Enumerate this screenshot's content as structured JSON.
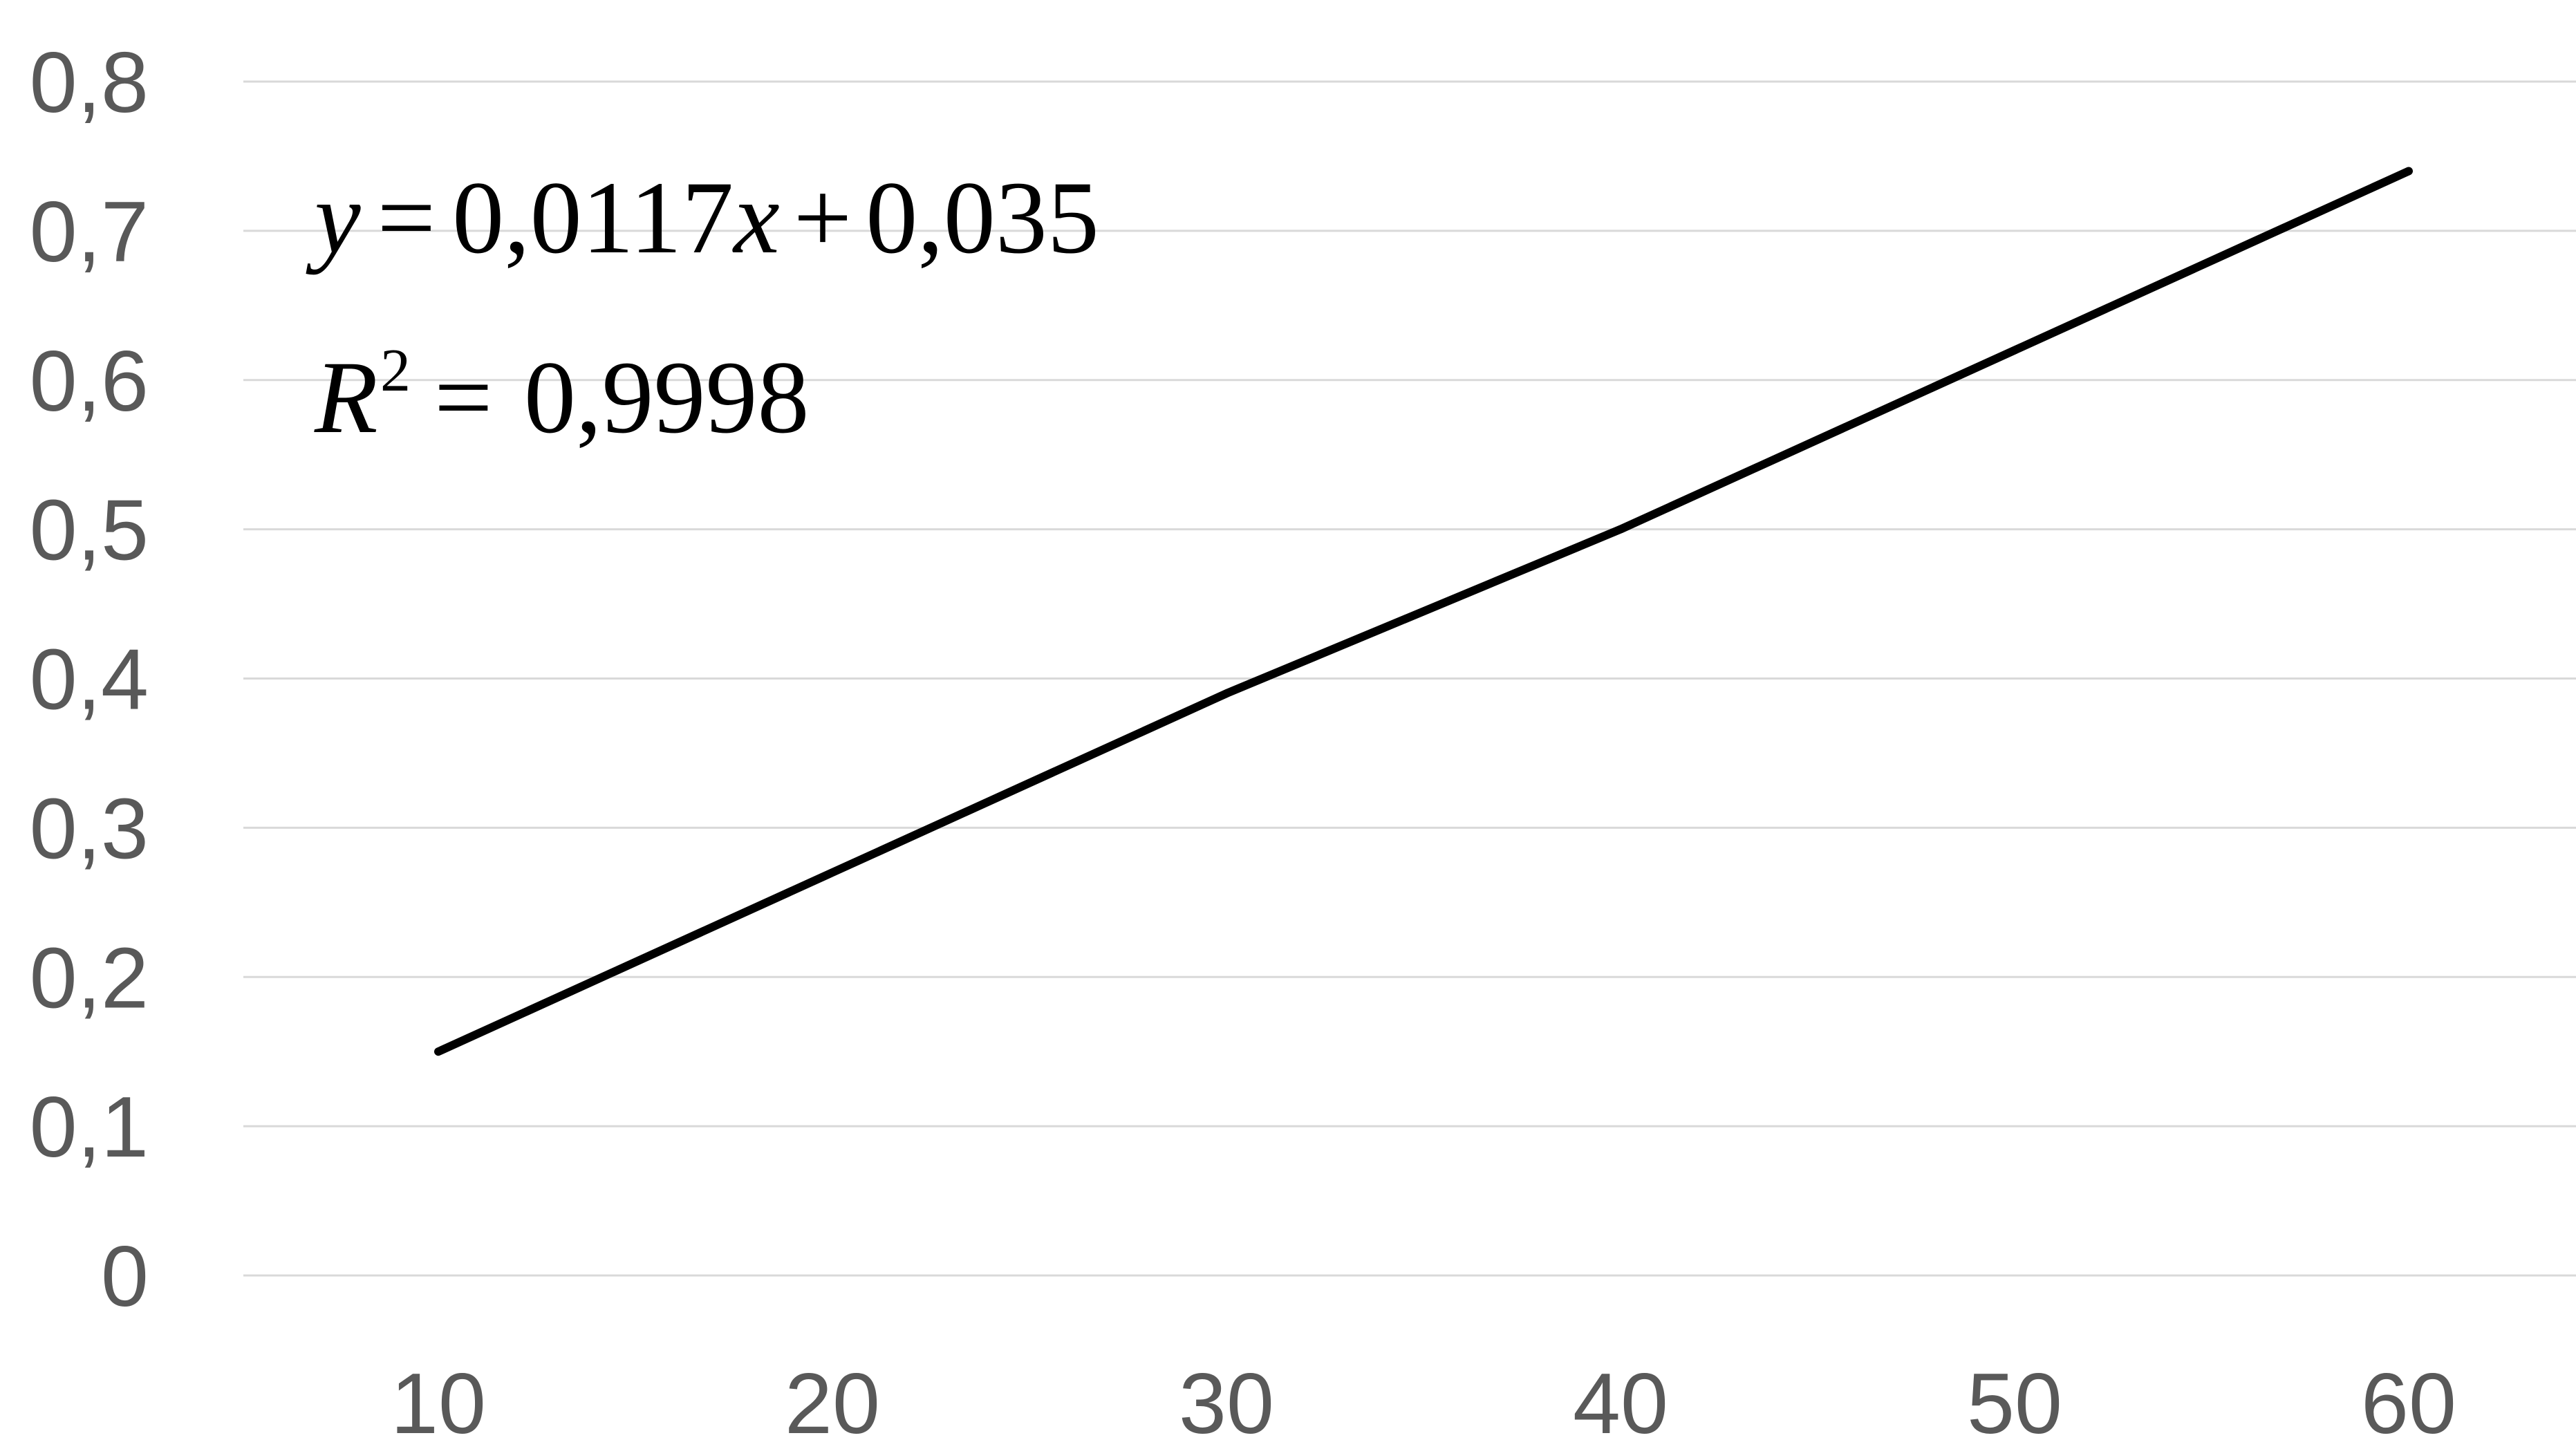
{
  "chart_data": {
    "type": "line",
    "title": "",
    "xlabel": "",
    "ylabel": "",
    "x": [
      10,
      20,
      30,
      40,
      50,
      60
    ],
    "series": [
      {
        "values": [
          0.15,
          0.27,
          0.39,
          0.5,
          0.62,
          0.74
        ],
        "color": "#000000"
      }
    ],
    "x_tick_labels": [
      "10",
      "20",
      "30",
      "40",
      "50",
      "60"
    ],
    "y_ticks": [
      0,
      0.1,
      0.2,
      0.3,
      0.4,
      0.5,
      0.6,
      0.7,
      0.8
    ],
    "y_tick_labels": [
      "0",
      "0,1",
      "0,2",
      "0,3",
      "0,4",
      "0,5",
      "0,6",
      "0,7",
      "0,8"
    ],
    "ylim": [
      0,
      0.8
    ],
    "grid": true,
    "legend": "none",
    "annotations": {
      "equation": {
        "lhs": "y",
        "equals": "=",
        "coef": "0,0117",
        "var": "x",
        "plus": "+",
        "intercept": "0,035"
      },
      "r_squared": {
        "symbol": "R",
        "power": "2",
        "equals": "=",
        "value": "0,9998"
      }
    },
    "colors": {
      "gridline": "#d9d9d9",
      "tick_text": "#595959",
      "line": "#000000"
    }
  }
}
